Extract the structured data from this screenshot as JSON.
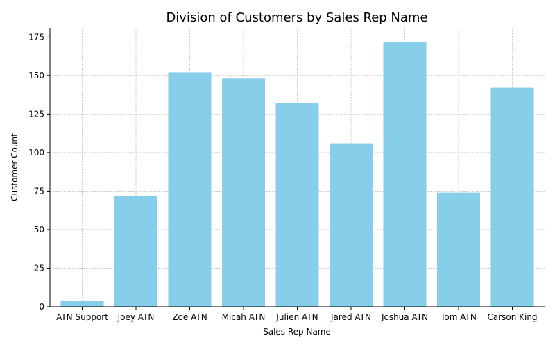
{
  "chart_data": {
    "type": "bar",
    "title": "Division of Customers by Sales Rep Name",
    "xlabel": "Sales Rep Name",
    "ylabel": "Customer Count",
    "categories": [
      "ATN Support",
      "Joey ATN",
      "Zoe ATN",
      "Micah ATN",
      "Julien ATN",
      "Jared ATN",
      "Joshua ATN",
      "Tom ATN",
      "Carson King"
    ],
    "values": [
      4,
      72,
      152,
      148,
      132,
      106,
      172,
      74,
      142
    ],
    "ylim": [
      0,
      181
    ],
    "yticks": [
      0,
      25,
      50,
      75,
      100,
      125,
      150,
      175
    ],
    "grid": true,
    "bar_color": "#87ceeb"
  }
}
